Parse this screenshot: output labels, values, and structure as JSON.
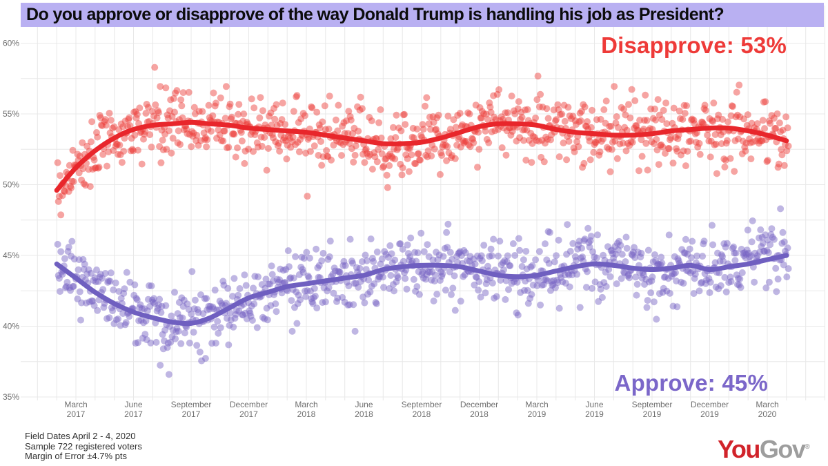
{
  "title": "Do you approve or disapprove of the way Donald Trump is handling his job as President?",
  "annotations": {
    "disapprove_label": "Disapprove: 53%",
    "approve_label": "Approve: 45%"
  },
  "footer": {
    "lines": [
      "Field Dates April 2 - 4, 2020",
      "Sample 722 registered voters",
      "Margin of Error ±4.7% pts"
    ]
  },
  "logo": {
    "part1": "You",
    "part2": "Gov",
    "registered": "®"
  },
  "colors": {
    "banner_bg": "#b9b0f2",
    "disapprove_text": "#ee3a38",
    "approve_text": "#7b67c9",
    "grid": "#e8e8e8",
    "axis_text": "#6f6f6f",
    "logo_red": "#d1232a",
    "logo_gray": "#9d9d9d"
  },
  "chart_data": {
    "type": "scatter",
    "title": "Do you approve or disapprove of the way Donald Trump is handling his job as President?",
    "xlabel": "",
    "ylabel": "",
    "ylim": [
      35,
      60
    ],
    "grid": true,
    "legend_position": "inline-annotations",
    "y_ticks": [
      {
        "value": 60,
        "label": "60%"
      },
      {
        "value": 55,
        "label": "55%"
      },
      {
        "value": 50,
        "label": "50%"
      },
      {
        "value": 45,
        "label": "45%"
      },
      {
        "value": 40,
        "label": "40%"
      },
      {
        "value": 35,
        "label": "35%"
      }
    ],
    "x_ticks": [
      {
        "month_index": 2,
        "month": "March",
        "year": "2017"
      },
      {
        "month_index": 5,
        "month": "June",
        "year": "2017"
      },
      {
        "month_index": 8,
        "month": "September",
        "year": "2017"
      },
      {
        "month_index": 11,
        "month": "December",
        "year": "2017"
      },
      {
        "month_index": 14,
        "month": "March",
        "year": "2018"
      },
      {
        "month_index": 17,
        "month": "June",
        "year": "2018"
      },
      {
        "month_index": 20,
        "month": "September",
        "year": "2018"
      },
      {
        "month_index": 23,
        "month": "December",
        "year": "2018"
      },
      {
        "month_index": 26,
        "month": "March",
        "year": "2019"
      },
      {
        "month_index": 29,
        "month": "June",
        "year": "2019"
      },
      {
        "month_index": 32,
        "month": "September",
        "year": "2019"
      },
      {
        "month_index": 35,
        "month": "December",
        "year": "2019"
      },
      {
        "month_index": 38,
        "month": "March",
        "year": "2020"
      }
    ],
    "x_range_month_index": [
      1.05,
      39.1
    ],
    "trend_start": "2017-02",
    "trend_end": "2020-04",
    "series": [
      {
        "name": "Disapprove",
        "current_value_pct": 53,
        "line_color": "#e8262b",
        "point_color": "rgba(236,62,58,0.47)",
        "seed": 987654321,
        "trend_monthly_pct": [
          49.6,
          51.2,
          52.4,
          53.3,
          53.9,
          54.2,
          54.3,
          54.4,
          54.3,
          54.2,
          54.0,
          53.9,
          53.8,
          53.7,
          53.5,
          53.3,
          53.1,
          52.9,
          52.9,
          53.0,
          53.3,
          53.7,
          54.1,
          54.3,
          54.3,
          54.2,
          53.9,
          53.7,
          53.6,
          53.5,
          53.5,
          53.6,
          53.8,
          53.9,
          54.0,
          54.0,
          53.8,
          53.5,
          53.1
        ]
      },
      {
        "name": "Approve",
        "current_value_pct": 45,
        "line_color": "#6f5fc0",
        "point_color": "rgba(118,100,195,0.47)",
        "seed": 123456789,
        "trend_monthly_pct": [
          44.4,
          43.4,
          42.4,
          41.6,
          41.0,
          40.6,
          40.3,
          40.2,
          40.6,
          41.3,
          42.0,
          42.4,
          42.8,
          43.0,
          43.2,
          43.4,
          43.6,
          44.0,
          44.2,
          44.3,
          44.3,
          44.2,
          43.9,
          43.6,
          43.5,
          43.6,
          43.9,
          44.2,
          44.4,
          44.3,
          44.1,
          44.0,
          44.1,
          44.3,
          44.0,
          44.2,
          44.4,
          44.7,
          45.0
        ]
      }
    ],
    "scatter_sim": {
      "points_per_series": 920,
      "noise_sd_pct": 1.15,
      "point_radius_px": 5
    }
  }
}
